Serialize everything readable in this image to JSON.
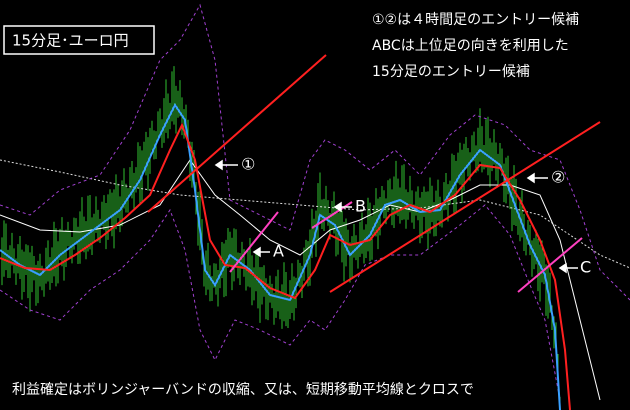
{
  "title": "15分足･ユーロ円",
  "notes": [
    "①②は４時間足のエントリー候補",
    "ABCは上位足の向きを利用した",
    "15分足のエントリー候補"
  ],
  "labels": {
    "one": "①",
    "a": "A",
    "b": "B",
    "two": "②",
    "c": "C"
  },
  "footer": "利益確定はボリンジャーバンドの収縮、又は、短期移動平均線とクロスで"
}
